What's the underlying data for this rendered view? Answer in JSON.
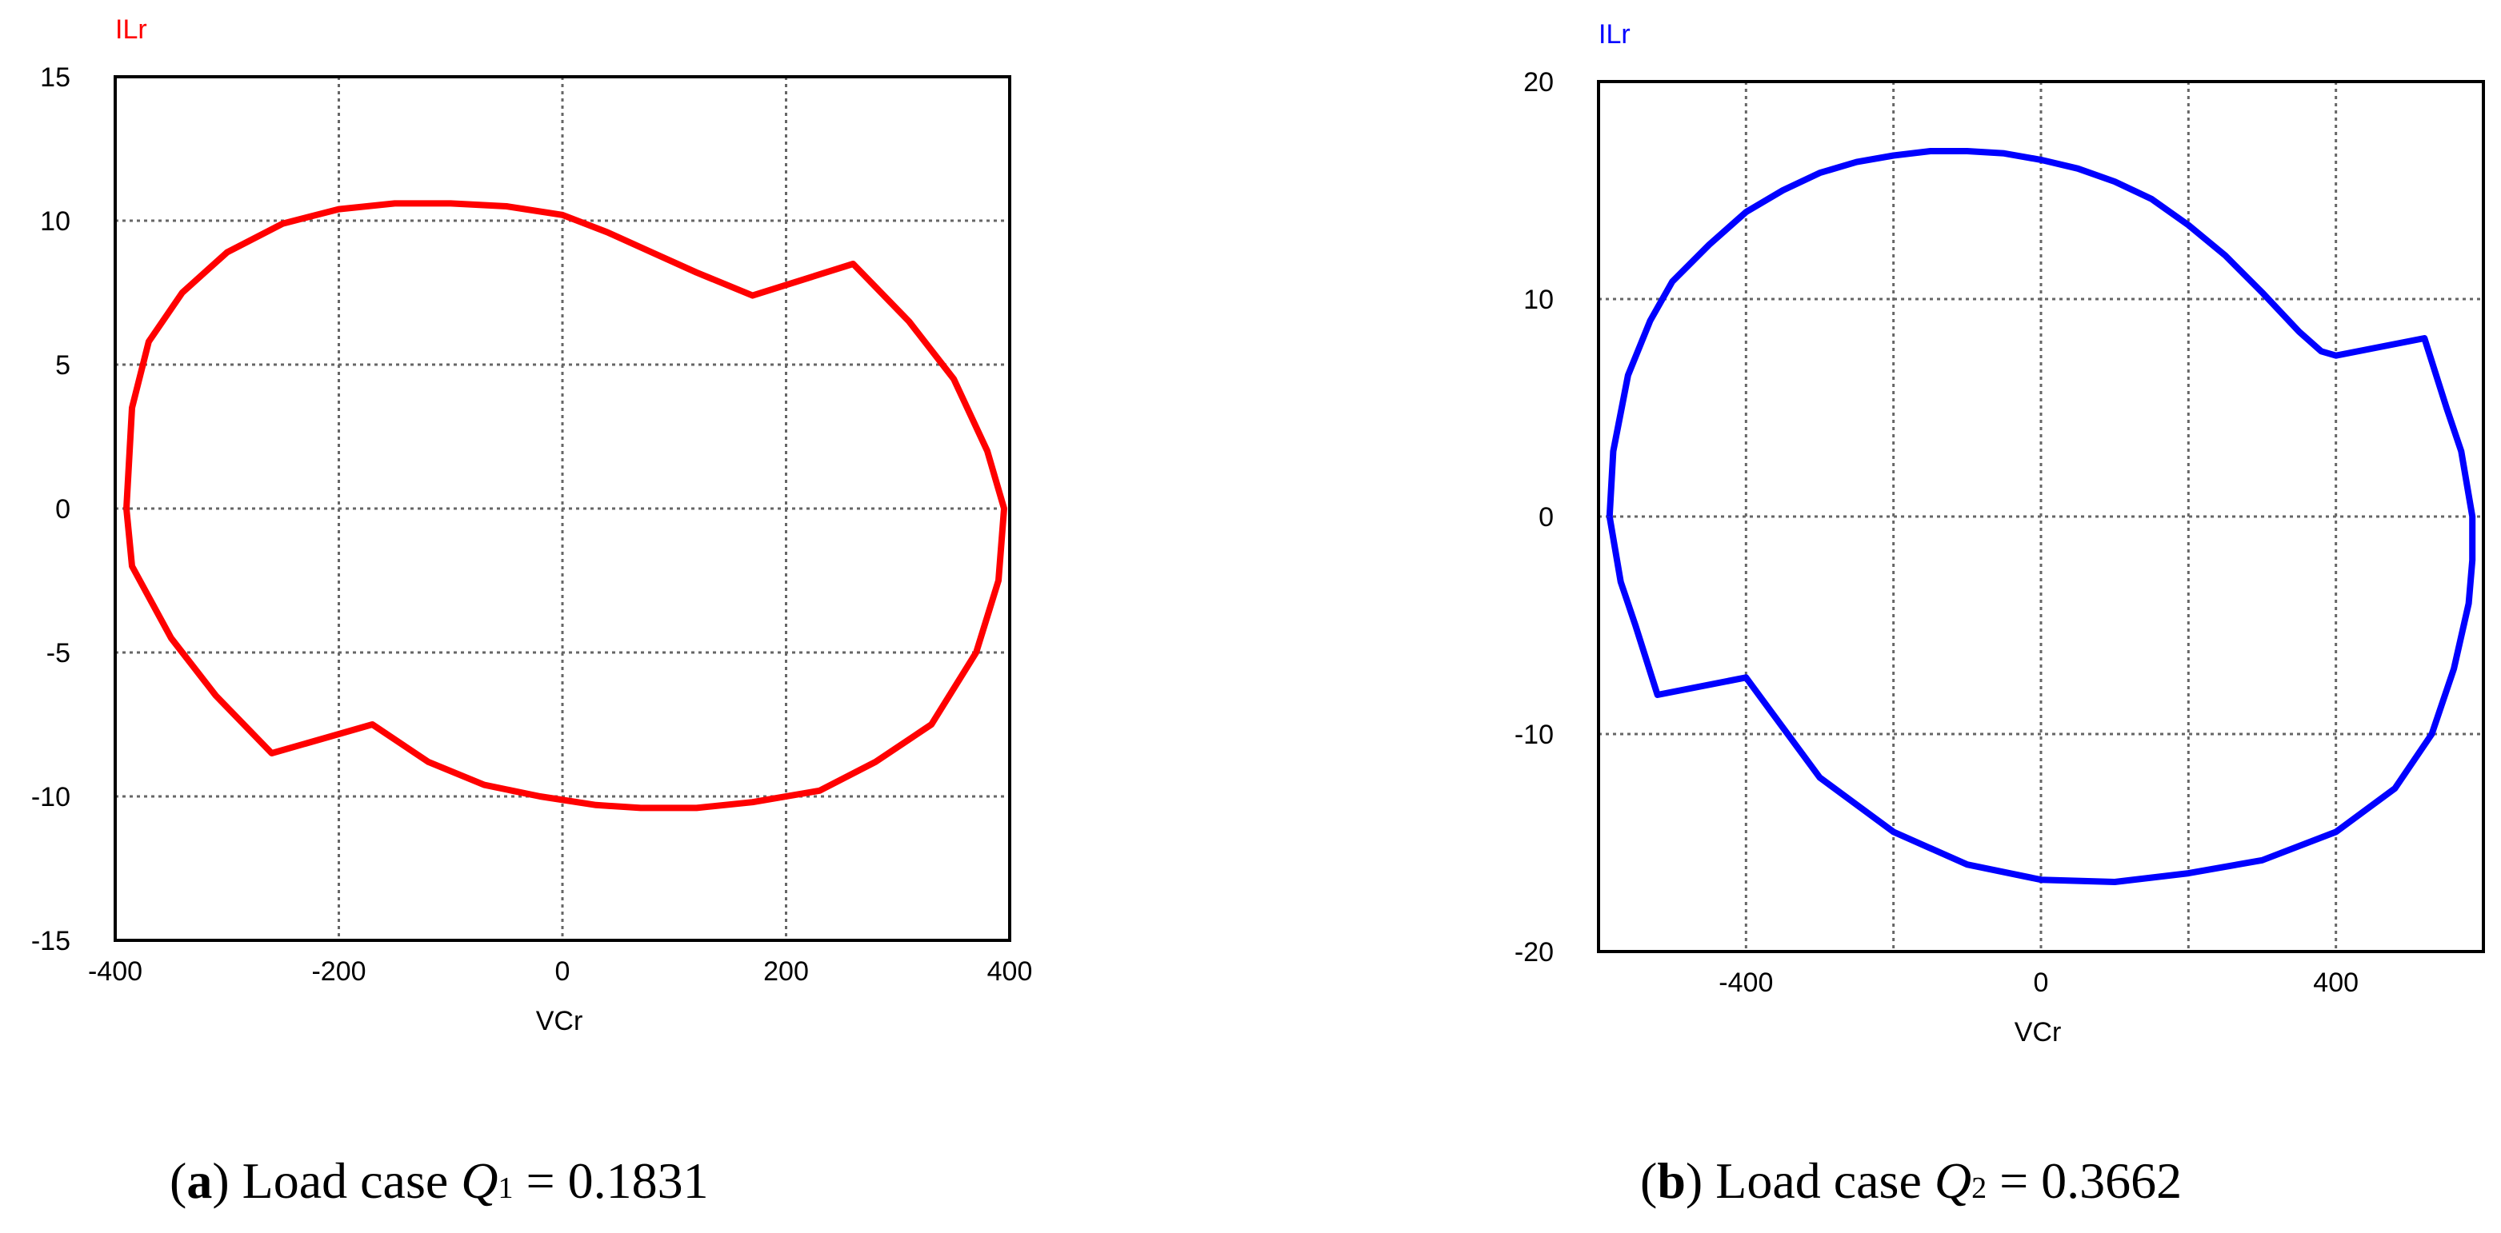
{
  "chart_data": [
    {
      "type": "line",
      "xlabel": "VCr",
      "ylabel": "ILr",
      "xlim": [
        -400,
        400
      ],
      "ylim": [
        -15,
        15
      ],
      "xticks": [
        -400,
        -200,
        0,
        200,
        400
      ],
      "yticks": [
        15,
        10,
        5,
        0,
        -5,
        -10,
        -15
      ],
      "grid": true,
      "color": "#ff0000",
      "series": [
        {
          "x": [
            -390,
            -385,
            -370,
            -340,
            -300,
            -250,
            -200,
            -150,
            -100,
            -50,
            0,
            40,
            80,
            120,
            170,
            260,
            310,
            350,
            380,
            395,
            390,
            370,
            330,
            280,
            230,
            170,
            120,
            70,
            30,
            -20,
            -70,
            -120,
            -170,
            -260,
            -310,
            -350,
            -385,
            -390
          ],
          "y": [
            0,
            3.5,
            5.8,
            7.5,
            8.9,
            9.9,
            10.4,
            10.6,
            10.6,
            10.5,
            10.2,
            9.6,
            8.9,
            8.2,
            7.4,
            8.5,
            6.5,
            4.5,
            2.0,
            0,
            -2.5,
            -5.0,
            -7.5,
            -8.8,
            -9.8,
            -10.2,
            -10.4,
            -10.4,
            -10.3,
            -10.0,
            -9.6,
            -8.8,
            -7.5,
            -8.5,
            -6.5,
            -4.5,
            -2.0,
            0
          ]
        }
      ],
      "caption": {
        "letter": "a",
        "prefix": "Load case ",
        "var": "Q",
        "sub": "1",
        "value": " = 0.1831"
      }
    },
    {
      "type": "line",
      "xlabel": "VCr",
      "ylabel": "ILr",
      "xlim": [
        -600,
        600
      ],
      "ylim": [
        -20,
        20
      ],
      "xticks": [
        -400,
        0,
        400
      ],
      "yticks": [
        20,
        10,
        0,
        -10,
        -20
      ],
      "grid": true,
      "color": "#0000ff",
      "series": [
        {
          "x": [
            -585,
            -580,
            -560,
            -530,
            -500,
            -450,
            -400,
            -350,
            -300,
            -250,
            -200,
            -150,
            -100,
            -50,
            0,
            50,
            100,
            150,
            200,
            250,
            300,
            350,
            380,
            400,
            520,
            550,
            570,
            585,
            585,
            580,
            560,
            530,
            480,
            400,
            300,
            200,
            100,
            0,
            -100,
            -200,
            -300,
            -400,
            -520,
            -550,
            -570,
            -585
          ],
          "y": [
            0,
            3.0,
            6.5,
            9.0,
            10.8,
            12.5,
            14.0,
            15.0,
            15.8,
            16.3,
            16.6,
            16.8,
            16.8,
            16.7,
            16.4,
            16.0,
            15.4,
            14.6,
            13.4,
            12.0,
            10.3,
            8.5,
            7.6,
            7.4,
            8.2,
            5.0,
            3.0,
            0,
            -2.0,
            -4.0,
            -7.0,
            -10.0,
            -12.5,
            -14.5,
            -15.8,
            -16.4,
            -16.8,
            -16.7,
            -16.0,
            -14.5,
            -12.0,
            -7.4,
            -8.2,
            -5.0,
            -3.0,
            0
          ]
        }
      ],
      "caption": {
        "letter": "b",
        "prefix": "Load case ",
        "var": "Q",
        "sub": "2",
        "value": " = 0.3662"
      }
    }
  ]
}
